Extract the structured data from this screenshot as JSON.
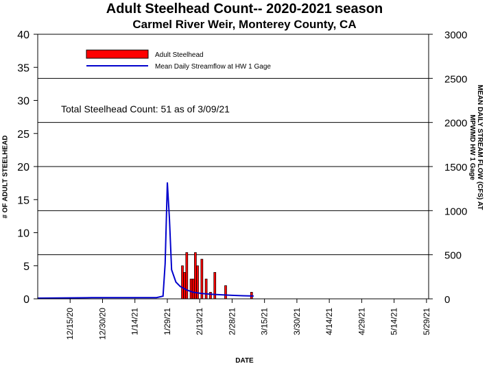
{
  "chart_data": {
    "type": "bar+line",
    "title": "Adult Steelhead Count-- 2020-2021 season",
    "subtitle": "Carmel River Weir, Monterey County, CA",
    "annotation": "Total Steelhead Count: 51 as of 3/09/21",
    "xlabel": "DATE",
    "ylabel_left": "# OF ADULT STEELHEAD",
    "ylabel_right_line1": "MEAN DAILY STREAM FLOW (CFS) AT",
    "ylabel_right_line2": "MPWMD HW 1 Gage",
    "x_tick_labels": [
      "12/15/20",
      "12/30/20",
      "1/14/21",
      "1/29/21",
      "2/13/21",
      "2/28/21",
      "3/15/21",
      "3/30/21",
      "4/14/21",
      "4/29/21",
      "5/14/21",
      "5/29/21"
    ],
    "xlim": [
      "2020-11-30",
      "2021-05-30"
    ],
    "ylim_left": [
      0,
      40
    ],
    "left_ticks": [
      0,
      5,
      10,
      15,
      20,
      25,
      30,
      35,
      40
    ],
    "ylim_right": [
      0,
      3000
    ],
    "right_ticks": [
      0,
      500,
      1000,
      1500,
      2000,
      2500,
      3000
    ],
    "gridlines_right": [
      500,
      1000,
      1500,
      2000,
      2500
    ],
    "legend": {
      "position": "top-left",
      "bar_label": "Adult Steelhead",
      "line_label": "Mean Daily Streamflow at HW 1 Gage"
    },
    "bar_color": "#ff0000",
    "line_color": "#0000cc",
    "bars": [
      {
        "date": "2021-02-05",
        "count": 5
      },
      {
        "date": "2021-02-06",
        "count": 4
      },
      {
        "date": "2021-02-07",
        "count": 7
      },
      {
        "date": "2021-02-09",
        "count": 3
      },
      {
        "date": "2021-02-10",
        "count": 3
      },
      {
        "date": "2021-02-11",
        "count": 7
      },
      {
        "date": "2021-02-12",
        "count": 5
      },
      {
        "date": "2021-02-14",
        "count": 6
      },
      {
        "date": "2021-02-16",
        "count": 3
      },
      {
        "date": "2021-02-18",
        "count": 1
      },
      {
        "date": "2021-02-20",
        "count": 4
      },
      {
        "date": "2021-02-25",
        "count": 2
      },
      {
        "date": "2021-03-09",
        "count": 1
      }
    ],
    "streamflow": [
      {
        "date": "2020-11-30",
        "cfs": 8
      },
      {
        "date": "2020-12-10",
        "cfs": 10
      },
      {
        "date": "2020-12-25",
        "cfs": 13
      },
      {
        "date": "2021-01-10",
        "cfs": 13
      },
      {
        "date": "2021-01-24",
        "cfs": 14
      },
      {
        "date": "2021-01-27",
        "cfs": 30
      },
      {
        "date": "2021-01-28",
        "cfs": 400
      },
      {
        "date": "2021-01-29",
        "cfs": 1320
      },
      {
        "date": "2021-01-30",
        "cfs": 900
      },
      {
        "date": "2021-01-31",
        "cfs": 330
      },
      {
        "date": "2021-02-02",
        "cfs": 190
      },
      {
        "date": "2021-02-04",
        "cfs": 140
      },
      {
        "date": "2021-02-07",
        "cfs": 100
      },
      {
        "date": "2021-02-10",
        "cfs": 75
      },
      {
        "date": "2021-02-14",
        "cfs": 60
      },
      {
        "date": "2021-02-20",
        "cfs": 50
      },
      {
        "date": "2021-02-28",
        "cfs": 40
      },
      {
        "date": "2021-03-05",
        "cfs": 35
      },
      {
        "date": "2021-03-10",
        "cfs": 32
      }
    ]
  }
}
